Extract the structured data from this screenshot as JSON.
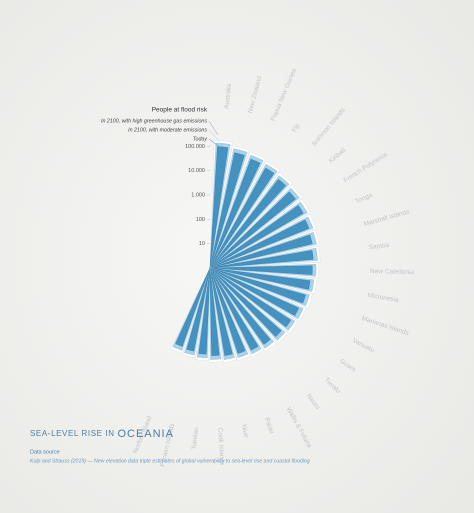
{
  "chart_data": {
    "type": "radial-bar",
    "title": "SEA-LEVEL RISE IN",
    "title_emphasis": "OCEANIA",
    "legend_title": "People at flood risk",
    "source_title": "Data source",
    "source": "Kulp and Strauss (2019)  —  New elevation data triple estimates of global vulnerability to sea-level rise and coastal flooding",
    "log_scale": true,
    "rlim": [
      1,
      1000000
    ],
    "rticks": [
      {
        "value": 100000,
        "label": "100.000"
      },
      {
        "value": 10000,
        "label": "10.000"
      },
      {
        "value": 1000,
        "label": "1.000"
      },
      100,
      10
    ],
    "categories": [
      "Australia",
      "New Zealand",
      "Papua New Guinea",
      "Fiji",
      "Solomon Islands",
      "Kiribati",
      "French Polynesia",
      "Tonga",
      "Marshall Islands",
      "Samoa",
      "New Caledonia",
      "Micronesia",
      "Marianas Islands",
      "Vanuatu",
      "Guam",
      "Tuvalu",
      "Nauru",
      "Wallis & Futuna",
      "Palau",
      "Niue",
      "Cook Islands",
      "Tokelau",
      "Pitcairn Islands",
      "Norfolk Island"
    ],
    "series": [
      {
        "name": "In 2100, with high greenhouse gas emissions",
        "color": "#ffffff",
        "values": [
          180000,
          130000,
          110000,
          90000,
          70000,
          60000,
          52000,
          45000,
          40000,
          35000,
          30000,
          26000,
          22000,
          19000,
          17000,
          15000,
          13000,
          11000,
          9500,
          8500,
          7500,
          6500,
          5500,
          5000
        ]
      },
      {
        "name": "In 2100, with moderate emissions",
        "color": "#a9d2e8",
        "values": [
          140000,
          100000,
          85000,
          70000,
          55000,
          47000,
          40000,
          35000,
          31000,
          27000,
          23000,
          20000,
          17000,
          15000,
          13000,
          11500,
          10000,
          8500,
          7300,
          6500,
          5800,
          5000,
          4300,
          3800
        ]
      },
      {
        "name": "Today",
        "color": "#3a8bbd",
        "values": [
          100000,
          70000,
          60000,
          50000,
          40000,
          33000,
          28000,
          24000,
          21000,
          18000,
          16000,
          14000,
          12000,
          10000,
          9000,
          8000,
          7000,
          6000,
          5000,
          4500,
          4000,
          3500,
          3000,
          2600
        ]
      }
    ]
  }
}
